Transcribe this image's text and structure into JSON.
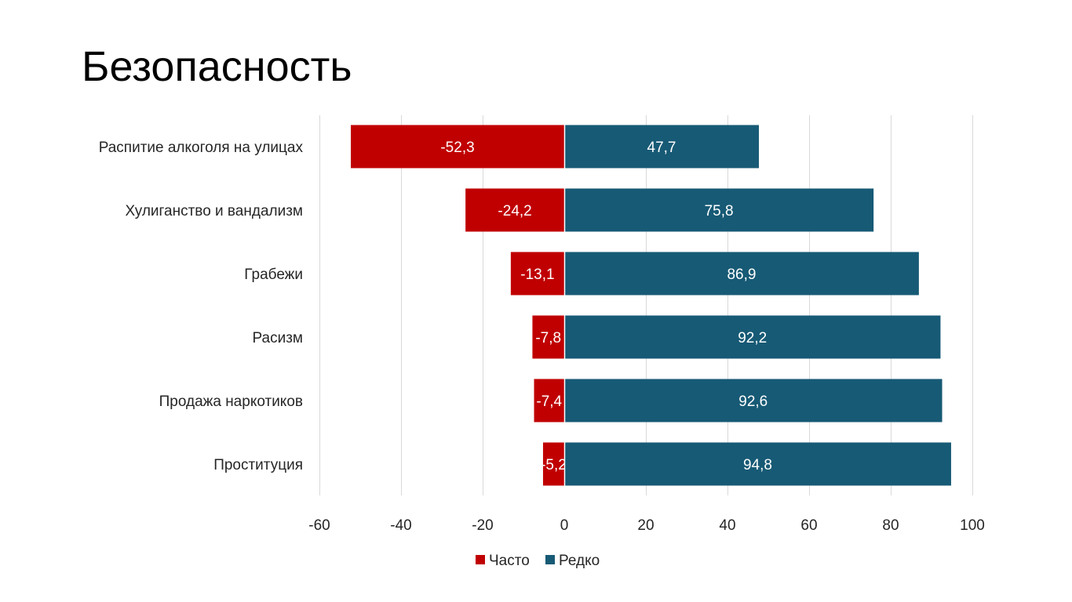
{
  "slide": {
    "title": "Безопасность"
  },
  "colors": {
    "often": "#C00000",
    "rarely": "#175A75",
    "grid": "#D9D9D9",
    "text": "#262626"
  },
  "chart_data": {
    "type": "bar",
    "orientation": "horizontal",
    "stacked": true,
    "categories": [
      "Распитие алкоголя на улицах",
      "Хулиганство и вандализм",
      "Грабежи",
      "Расизм",
      "Продажа наркотиков",
      "Проституция"
    ],
    "series": [
      {
        "name": "Часто",
        "values": [
          -52.3,
          -24.2,
          -13.1,
          -7.8,
          -7.4,
          -5.2
        ],
        "labels": [
          "-52,3",
          "-24,2",
          "-13,1",
          "-7,8",
          "-7,4",
          "-5,2"
        ],
        "color": "#C00000"
      },
      {
        "name": "Редко",
        "values": [
          47.7,
          75.8,
          86.9,
          92.2,
          92.6,
          94.8
        ],
        "labels": [
          "47,7",
          "75,8",
          "86,9",
          "92,2",
          "92,6",
          "94,8"
        ],
        "color": "#175A75"
      }
    ],
    "xlim": [
      -60,
      100
    ],
    "xticks": [
      -60,
      -40,
      -20,
      0,
      20,
      40,
      60,
      80,
      100
    ],
    "xtick_labels": [
      "-60",
      "-40",
      "-20",
      "0",
      "20",
      "40",
      "60",
      "80",
      "100"
    ],
    "grid": true,
    "legend": "bottom"
  }
}
